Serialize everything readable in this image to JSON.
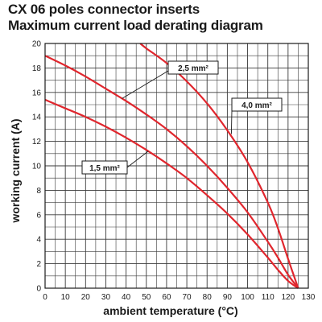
{
  "header": {
    "title_line1": "CX 06 poles connector inserts",
    "title_line2": "Maximum current load derating diagram"
  },
  "colors": {
    "curve": "#e0262d",
    "grid": "#3a3a3a",
    "text": "#1a1a1a"
  },
  "chart_data": {
    "type": "line",
    "title": "CX 06 poles connector inserts — Maximum current load derating diagram",
    "xlabel": "ambient temperature (°C)",
    "ylabel": "working current (A)",
    "xlim": [
      0,
      130
    ],
    "ylim": [
      0,
      20
    ],
    "x_ticks": [
      0,
      10,
      20,
      30,
      40,
      50,
      60,
      70,
      80,
      90,
      100,
      110,
      120,
      130
    ],
    "y_ticks": [
      0,
      2,
      4,
      6,
      8,
      10,
      12,
      14,
      16,
      18,
      20
    ],
    "grid": true,
    "series": [
      {
        "name": "1,5 mm²",
        "x": [
          0,
          10,
          20,
          30,
          40,
          50,
          60,
          70,
          80,
          90,
          100,
          110,
          115,
          120,
          125
        ],
        "y": [
          15.4,
          14.7,
          14.0,
          13.2,
          12.3,
          11.3,
          10.2,
          9.0,
          7.6,
          6.1,
          4.4,
          2.5,
          1.5,
          0.6,
          0
        ]
      },
      {
        "name": "2,5 mm²",
        "x": [
          0,
          10,
          20,
          30,
          40,
          50,
          60,
          70,
          80,
          90,
          100,
          110,
          115,
          120,
          125
        ],
        "y": [
          19.0,
          18.2,
          17.3,
          16.3,
          15.3,
          14.2,
          13.0,
          11.6,
          10.0,
          8.2,
          6.2,
          3.8,
          2.5,
          1.1,
          0
        ]
      },
      {
        "name": "4,0 mm²",
        "x": [
          47,
          50,
          60,
          70,
          80,
          90,
          100,
          110,
          115,
          120,
          125
        ],
        "y": [
          20.0,
          19.6,
          18.4,
          16.9,
          15.1,
          12.9,
          10.3,
          7.0,
          4.9,
          2.4,
          0
        ]
      }
    ]
  }
}
